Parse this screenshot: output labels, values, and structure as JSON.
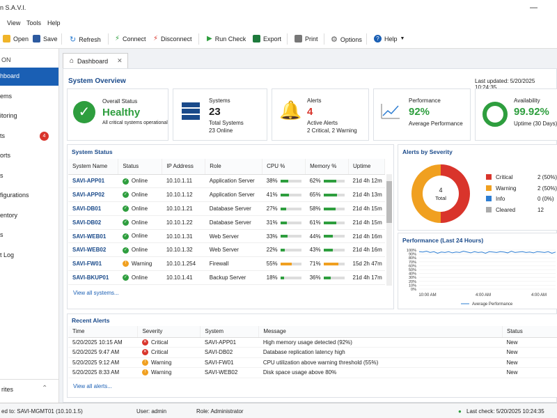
{
  "window": {
    "title": "n S.A.V.I."
  },
  "menu": [
    "View",
    "Tools",
    "Help"
  ],
  "toolbar": {
    "open": "Open",
    "save": "Save",
    "refresh": "Refresh",
    "connect": "Connect",
    "disconnect": "Disconnect",
    "run_check": "Run Check",
    "export": "Export",
    "print": "Print",
    "options": "Options",
    "help": "Help"
  },
  "sidebar": {
    "header": "ON",
    "items": [
      {
        "label": "hboard"
      },
      {
        "label": "ems"
      },
      {
        "label": "itoring"
      },
      {
        "label": "ts",
        "badge": "4"
      },
      {
        "label": "orts"
      },
      {
        "label": "s"
      },
      {
        "label": "figurations"
      },
      {
        "label": "entory"
      },
      {
        "label": "s"
      },
      {
        "label": "t Log"
      }
    ],
    "favorites": "rites"
  },
  "tab": {
    "label": "Dashboard"
  },
  "overview": {
    "title": "System Overview",
    "last_updated": "Last updated: 5/20/2025 10:24:35"
  },
  "cards": {
    "status": {
      "label": "Overall Status",
      "value": "Healthy",
      "sub": "All critical systems operational"
    },
    "systems": {
      "label": "Systems",
      "value": "23",
      "sub1": "Total Systems",
      "sub2": "23 Online"
    },
    "alerts": {
      "label": "Alerts",
      "value": "4",
      "sub1": "Active Alerts",
      "sub2": "2 Critical, 2 Warning"
    },
    "performance": {
      "label": "Performance",
      "value": "92%",
      "sub": "Average Performance"
    },
    "availability": {
      "label": "Availability",
      "value": "99.92%",
      "sub": "Uptime (30 Days)",
      "fraction": 0.9992
    }
  },
  "system_status": {
    "title": "System Status",
    "headers": [
      "System Name",
      "Status",
      "IP Address",
      "Role",
      "CPU %",
      "Memory %",
      "Uptime"
    ],
    "rows": [
      {
        "name": "SAVI-APP01",
        "status": "Online",
        "ip": "10.10.1.11",
        "role": "Application Server",
        "cpu": "38%",
        "mem": "62%",
        "uptime": "21d 4h 12m"
      },
      {
        "name": "SAVI-APP02",
        "status": "Online",
        "ip": "10.10.1.12",
        "role": "Application Server",
        "cpu": "41%",
        "mem": "65%",
        "uptime": "21d 4h 13m"
      },
      {
        "name": "SAVI-DB01",
        "status": "Online",
        "ip": "10.10.1.21",
        "role": "Database Server",
        "cpu": "27%",
        "mem": "58%",
        "uptime": "21d 4h 15m"
      },
      {
        "name": "SAVI-DB02",
        "status": "Online",
        "ip": "10.10.1.22",
        "role": "Database Server",
        "cpu": "31%",
        "mem": "61%",
        "uptime": "21d 4h 15m"
      },
      {
        "name": "SAVI-WEB01",
        "status": "Online",
        "ip": "10.10.1.31",
        "role": "Web Server",
        "cpu": "33%",
        "mem": "44%",
        "uptime": "21d 4h 16m"
      },
      {
        "name": "SAVI-WEB02",
        "status": "Online",
        "ip": "10.10.1.32",
        "role": "Web Server",
        "cpu": "22%",
        "mem": "43%",
        "uptime": "21d 4h 16m"
      },
      {
        "name": "SAVI-FW01",
        "status": "Warning",
        "ip": "10.10.1.254",
        "role": "Firewall",
        "cpu": "55%",
        "mem": "71%",
        "uptime": "15d 2h 47m"
      },
      {
        "name": "SAVI-BKUP01",
        "status": "Online",
        "ip": "10.10.1.41",
        "role": "Backup Server",
        "cpu": "18%",
        "mem": "36%",
        "uptime": "21d 4h 17m"
      }
    ],
    "view_all": "View all systems..."
  },
  "alerts_severity": {
    "title": "Alerts by Severity",
    "total": "4",
    "total_label": "Total",
    "legend": [
      {
        "name": "Critical",
        "count": "2 (50%)",
        "color": "#d9342b",
        "value": 2
      },
      {
        "name": "Warning",
        "count": "2 (50%)",
        "color": "#f0a020",
        "value": 2
      },
      {
        "name": "Info",
        "count": "0 (0%)",
        "color": "#2d7dd2",
        "value": 0
      },
      {
        "name": "Cleared",
        "count": "12",
        "color": "#aaaaaa",
        "value": 12
      }
    ]
  },
  "chart_data": {
    "type": "line",
    "title": "Performance (Last 24 Hours)",
    "x_ticks": [
      "10:00 AM",
      "4:00 AM",
      "4:00 AM"
    ],
    "y_ticks": [
      "100%",
      "90%",
      "80%",
      "70%",
      "60%",
      "50%",
      "40%",
      "30%",
      "20%",
      "10%",
      "0%"
    ],
    "ylim": [
      0,
      100
    ],
    "series": [
      {
        "name": "Average Performance",
        "color": "#2d7dd2",
        "values": [
          96,
          95,
          97,
          94,
          96,
          92,
          95,
          94,
          96,
          93,
          95,
          94,
          97,
          95,
          93,
          96,
          94,
          95,
          92,
          96,
          95,
          94,
          96,
          95,
          93,
          97,
          94,
          95,
          96,
          94,
          95,
          93,
          96,
          95,
          94,
          96,
          92,
          95
        ]
      }
    ]
  },
  "recent_alerts": {
    "title": "Recent Alerts",
    "headers": [
      "Time",
      "Severity",
      "System",
      "Message",
      "Status"
    ],
    "rows": [
      {
        "time": "5/20/2025 10:15 AM",
        "severity": "Critical",
        "system": "SAVI-APP01",
        "message": "High memory usage detected (92%)",
        "status": "New"
      },
      {
        "time": "5/20/2025 9:47 AM",
        "severity": "Critical",
        "system": "SAVI-DB02",
        "message": "Database replication latency high",
        "status": "New"
      },
      {
        "time": "5/20/2025 9:12 AM",
        "severity": "Warning",
        "system": "SAVI-FW01",
        "message": "CPU utilization above warning threshold (55%)",
        "status": "New"
      },
      {
        "time": "5/20/2025 8:33 AM",
        "severity": "Warning",
        "system": "SAVI-WEB02",
        "message": "Disk space usage above 80%",
        "status": "New"
      }
    ],
    "view_all": "View all alerts..."
  },
  "statusbar": {
    "connected": "ed to: SAVI-MGMT01 (10.10.1.5)",
    "user": "User: admin",
    "role": "Role: Administrator",
    "last_check": "Last check: 5/20/2025 10:24:35"
  }
}
